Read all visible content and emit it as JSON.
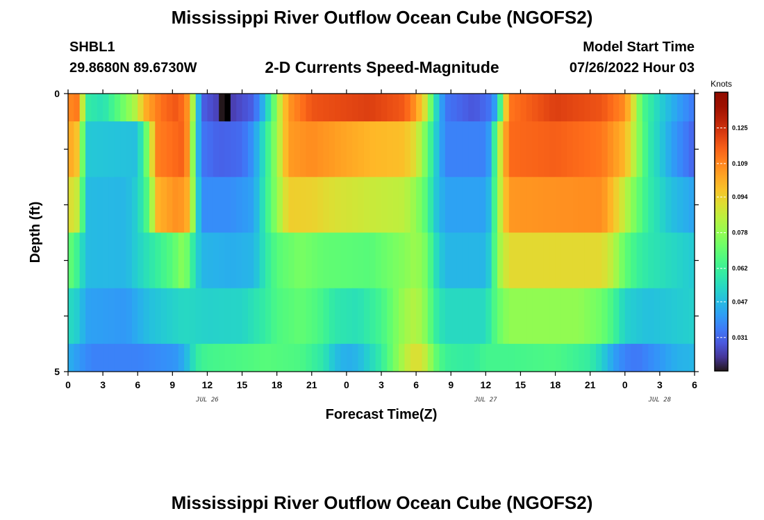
{
  "header": {
    "title": "Mississippi River Outflow Ocean Cube (NGOFS2)",
    "station": "SHBL1",
    "coords": "29.8680N  89.6730W",
    "subtitle": "2-D Currents Speed-Magnitude",
    "model_label": "Model Start Time",
    "model_time": "07/26/2022 Hour 03"
  },
  "footer": {
    "title": "Mississippi River Outflow Ocean Cube (NGOFS2)"
  },
  "chart_data": {
    "type": "heatmap",
    "title": "2-D Currents Speed-Magnitude",
    "xlabel": "Forecast Time(Z)",
    "ylabel": "Depth (ft)",
    "x_tick_labels": [
      "0",
      "3",
      "6",
      "9",
      "12",
      "15",
      "18",
      "21",
      "0",
      "3",
      "6",
      "9",
      "12",
      "15",
      "18",
      "21",
      "0",
      "3",
      "6"
    ],
    "x_date_labels": [
      {
        "label": "JUL 26",
        "hour": 12
      },
      {
        "label": "JUL 27",
        "hour": 36
      },
      {
        "label": "JUL 28",
        "hour": 51
      }
    ],
    "x_range": [
      0,
      54
    ],
    "y_tick_labels": [
      "0",
      "5"
    ],
    "y_range": [
      0,
      5
    ],
    "colorbar": {
      "title": "Knots",
      "labels": [
        "0.125",
        "0.109",
        "0.094",
        "0.078",
        "0.062",
        "0.047",
        "0.031"
      ],
      "range": [
        0.016,
        0.141
      ],
      "colormap": "turbo"
    },
    "depth_bins": [
      {
        "top": 0.0,
        "bottom": 0.5
      },
      {
        "top": 0.5,
        "bottom": 1.5
      },
      {
        "top": 1.5,
        "bottom": 2.5
      },
      {
        "top": 2.5,
        "bottom": 3.5
      },
      {
        "top": 3.5,
        "bottom": 4.5
      },
      {
        "top": 4.5,
        "bottom": 5.0
      }
    ],
    "time_step_hours": 0.5,
    "layer_keyframes": [
      [
        [
          0,
          0.108
        ],
        [
          1,
          0.112
        ],
        [
          1.5,
          0.06
        ],
        [
          3,
          0.056
        ],
        [
          4.5,
          0.07
        ],
        [
          6,
          0.085
        ],
        [
          6.5,
          0.1
        ],
        [
          8,
          0.113
        ],
        [
          9.5,
          0.118
        ],
        [
          10.5,
          0.104
        ],
        [
          11,
          0.06
        ],
        [
          11.5,
          0.03
        ],
        [
          13,
          0.024
        ],
        [
          13.4,
          0.005
        ],
        [
          13.8,
          0.005
        ],
        [
          14.2,
          0.024
        ],
        [
          16,
          0.03
        ],
        [
          16.8,
          0.045
        ],
        [
          17.5,
          0.062
        ],
        [
          18,
          0.08
        ],
        [
          19,
          0.106
        ],
        [
          21,
          0.118
        ],
        [
          26,
          0.122
        ],
        [
          29,
          0.117
        ],
        [
          30,
          0.106
        ],
        [
          31,
          0.085
        ],
        [
          31.5,
          0.06
        ],
        [
          32.5,
          0.034
        ],
        [
          35,
          0.028
        ],
        [
          36.5,
          0.034
        ],
        [
          37,
          0.047
        ],
        [
          37.5,
          0.08
        ],
        [
          38,
          0.112
        ],
        [
          42,
          0.122
        ],
        [
          46,
          0.118
        ],
        [
          48,
          0.108
        ],
        [
          48.8,
          0.088
        ],
        [
          49.5,
          0.066
        ],
        [
          51,
          0.052
        ],
        [
          52.5,
          0.042
        ],
        [
          54,
          0.034
        ]
      ],
      [
        [
          0,
          0.104
        ],
        [
          1,
          0.095
        ],
        [
          1.5,
          0.05
        ],
        [
          6,
          0.048
        ],
        [
          7,
          0.08
        ],
        [
          7.6,
          0.11
        ],
        [
          10,
          0.116
        ],
        [
          10.5,
          0.1
        ],
        [
          11,
          0.055
        ],
        [
          11.5,
          0.034
        ],
        [
          13,
          0.03
        ],
        [
          15,
          0.032
        ],
        [
          16,
          0.04
        ],
        [
          17,
          0.058
        ],
        [
          18,
          0.08
        ],
        [
          19,
          0.105
        ],
        [
          21,
          0.108
        ],
        [
          26,
          0.1
        ],
        [
          29,
          0.098
        ],
        [
          30,
          0.09
        ],
        [
          31,
          0.07
        ],
        [
          31.5,
          0.055
        ],
        [
          32.5,
          0.036
        ],
        [
          36,
          0.036
        ],
        [
          36.5,
          0.045
        ],
        [
          37,
          0.078
        ],
        [
          38,
          0.114
        ],
        [
          42,
          0.116
        ],
        [
          46,
          0.112
        ],
        [
          48,
          0.1
        ],
        [
          49,
          0.08
        ],
        [
          50,
          0.06
        ],
        [
          52,
          0.042
        ],
        [
          54,
          0.03
        ]
      ],
      [
        [
          0,
          0.092
        ],
        [
          1,
          0.085
        ],
        [
          1.5,
          0.047
        ],
        [
          5,
          0.046
        ],
        [
          6,
          0.052
        ],
        [
          7,
          0.07
        ],
        [
          7.6,
          0.1
        ],
        [
          9.5,
          0.108
        ],
        [
          10.5,
          0.1
        ],
        [
          11,
          0.06
        ],
        [
          11.5,
          0.038
        ],
        [
          14,
          0.038
        ],
        [
          16,
          0.042
        ],
        [
          17,
          0.06
        ],
        [
          18,
          0.078
        ],
        [
          19,
          0.095
        ],
        [
          21,
          0.094
        ],
        [
          23,
          0.09
        ],
        [
          26,
          0.087
        ],
        [
          29,
          0.085
        ],
        [
          30,
          0.078
        ],
        [
          31,
          0.066
        ],
        [
          31.5,
          0.052
        ],
        [
          32.5,
          0.042
        ],
        [
          36,
          0.042
        ],
        [
          36.5,
          0.05
        ],
        [
          37,
          0.078
        ],
        [
          38,
          0.106
        ],
        [
          46,
          0.108
        ],
        [
          47,
          0.098
        ],
        [
          48,
          0.085
        ],
        [
          49,
          0.072
        ],
        [
          50,
          0.06
        ],
        [
          52,
          0.048
        ],
        [
          54,
          0.042
        ]
      ],
      [
        [
          0,
          0.072
        ],
        [
          1,
          0.06
        ],
        [
          1.5,
          0.047
        ],
        [
          5,
          0.046
        ],
        [
          6,
          0.052
        ],
        [
          7.5,
          0.06
        ],
        [
          9,
          0.068
        ],
        [
          10,
          0.078
        ],
        [
          10.5,
          0.066
        ],
        [
          11,
          0.054
        ],
        [
          11.5,
          0.046
        ],
        [
          14,
          0.044
        ],
        [
          16,
          0.046
        ],
        [
          17,
          0.058
        ],
        [
          18,
          0.068
        ],
        [
          20,
          0.074
        ],
        [
          22,
          0.07
        ],
        [
          26,
          0.068
        ],
        [
          29,
          0.076
        ],
        [
          30,
          0.08
        ],
        [
          31,
          0.072
        ],
        [
          31.5,
          0.058
        ],
        [
          32.5,
          0.046
        ],
        [
          36,
          0.046
        ],
        [
          36.5,
          0.054
        ],
        [
          37,
          0.078
        ],
        [
          38,
          0.092
        ],
        [
          46,
          0.092
        ],
        [
          47,
          0.084
        ],
        [
          48,
          0.07
        ],
        [
          49,
          0.062
        ],
        [
          50,
          0.058
        ],
        [
          52,
          0.054
        ],
        [
          54,
          0.05
        ]
      ],
      [
        [
          0,
          0.055
        ],
        [
          1,
          0.05
        ],
        [
          1.5,
          0.042
        ],
        [
          5,
          0.04
        ],
        [
          6,
          0.044
        ],
        [
          7,
          0.048
        ],
        [
          9,
          0.052
        ],
        [
          10,
          0.054
        ],
        [
          12,
          0.052
        ],
        [
          15,
          0.053
        ],
        [
          17,
          0.06
        ],
        [
          18,
          0.066
        ],
        [
          20,
          0.07
        ],
        [
          21.5,
          0.066
        ],
        [
          23,
          0.058
        ],
        [
          25,
          0.056
        ],
        [
          27,
          0.064
        ],
        [
          28,
          0.072
        ],
        [
          29,
          0.08
        ],
        [
          30,
          0.084
        ],
        [
          31,
          0.074
        ],
        [
          31.5,
          0.062
        ],
        [
          32.5,
          0.054
        ],
        [
          36,
          0.054
        ],
        [
          36.5,
          0.062
        ],
        [
          37,
          0.07
        ],
        [
          38,
          0.078
        ],
        [
          44,
          0.078
        ],
        [
          46,
          0.072
        ],
        [
          47,
          0.064
        ],
        [
          48,
          0.052
        ],
        [
          50,
          0.048
        ],
        [
          52,
          0.05
        ],
        [
          54,
          0.052
        ]
      ],
      [
        [
          0,
          0.045
        ],
        [
          1,
          0.04
        ],
        [
          2,
          0.036
        ],
        [
          6,
          0.036
        ],
        [
          8,
          0.038
        ],
        [
          9.5,
          0.04
        ],
        [
          10.5,
          0.05
        ],
        [
          11,
          0.06
        ],
        [
          12,
          0.064
        ],
        [
          15,
          0.066
        ],
        [
          17,
          0.068
        ],
        [
          20,
          0.066
        ],
        [
          22,
          0.058
        ],
        [
          23,
          0.048
        ],
        [
          24,
          0.044
        ],
        [
          25,
          0.046
        ],
        [
          27,
          0.06
        ],
        [
          28,
          0.072
        ],
        [
          29,
          0.084
        ],
        [
          30,
          0.092
        ],
        [
          31,
          0.084
        ],
        [
          31.5,
          0.072
        ],
        [
          32.5,
          0.062
        ],
        [
          34,
          0.06
        ],
        [
          35,
          0.06
        ],
        [
          36,
          0.064
        ],
        [
          38,
          0.064
        ],
        [
          42,
          0.066
        ],
        [
          45,
          0.06
        ],
        [
          46,
          0.052
        ],
        [
          47,
          0.042
        ],
        [
          48,
          0.036
        ],
        [
          49,
          0.034
        ],
        [
          51,
          0.04
        ],
        [
          52.5,
          0.045
        ],
        [
          54,
          0.046
        ]
      ]
    ]
  }
}
